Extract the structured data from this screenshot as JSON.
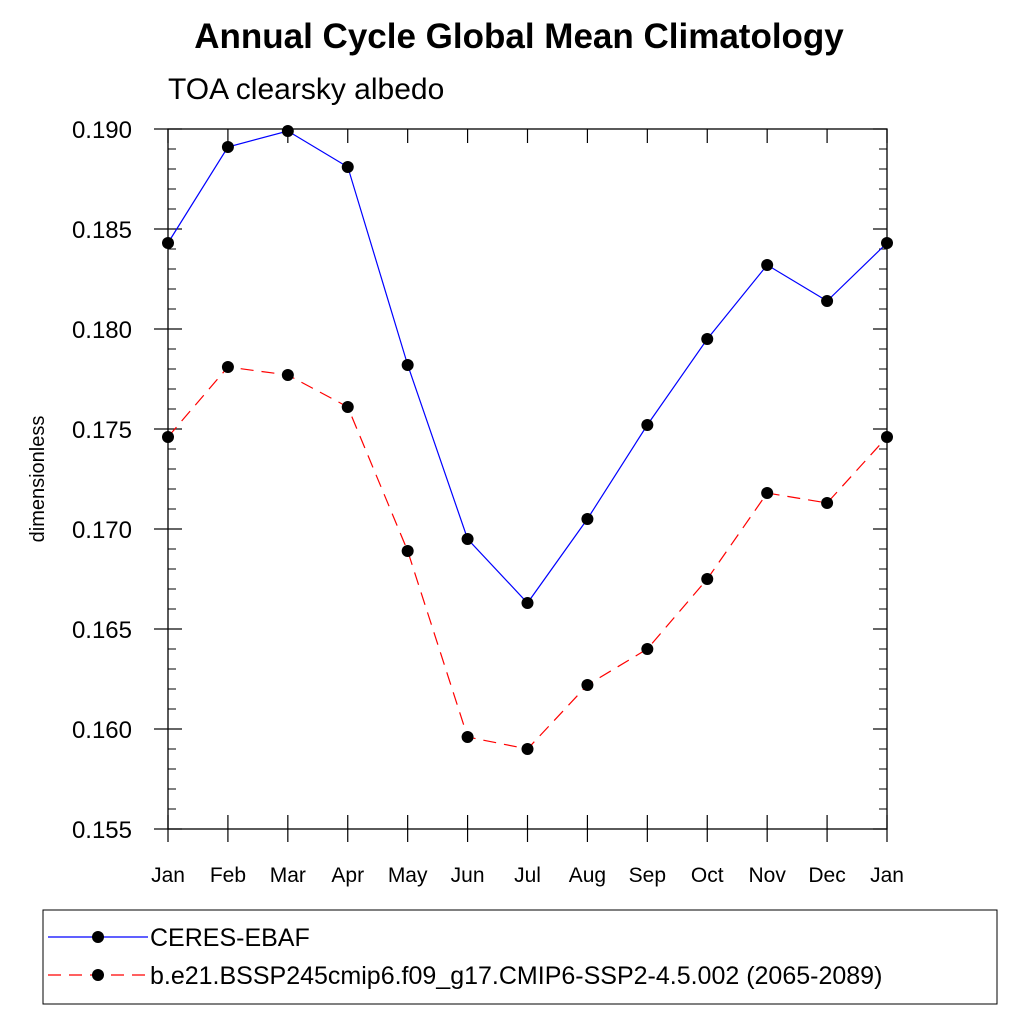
{
  "chart_data": {
    "type": "line",
    "title": "Annual Cycle Global Mean Climatology",
    "subtitle": "TOA clearsky albedo",
    "xlabel": "",
    "ylabel": "dimensionless",
    "categories": [
      "Jan",
      "Feb",
      "Mar",
      "Apr",
      "May",
      "Jun",
      "Jul",
      "Aug",
      "Sep",
      "Oct",
      "Nov",
      "Dec",
      "Jan"
    ],
    "ylim": [
      0.155,
      0.19
    ],
    "yticks": [
      "0.155",
      "0.160",
      "0.165",
      "0.170",
      "0.175",
      "0.180",
      "0.185",
      "0.190"
    ],
    "ytick_values": [
      0.155,
      0.16,
      0.165,
      0.17,
      0.175,
      0.18,
      0.185,
      0.19
    ],
    "grid": false,
    "legend_position": "bottom",
    "series": [
      {
        "name": "CERES-EBAF",
        "color": "#0000ff",
        "line_style": "solid",
        "marker": "circle",
        "values": [
          0.1843,
          0.1891,
          0.1899,
          0.1881,
          0.1782,
          0.1695,
          0.1663,
          0.1705,
          0.1752,
          0.1795,
          0.1832,
          0.1814,
          0.1843
        ]
      },
      {
        "name": "b.e21.BSSP245cmip6.f09_g17.CMIP6-SSP2-4.5.002 (2065-2089)",
        "color": "#ff0000",
        "line_style": "dashed",
        "marker": "circle",
        "values": [
          0.1746,
          0.1781,
          0.1777,
          0.1761,
          0.1689,
          0.1596,
          0.159,
          0.1622,
          0.164,
          0.1675,
          0.1718,
          0.1713,
          0.1746
        ]
      }
    ]
  }
}
